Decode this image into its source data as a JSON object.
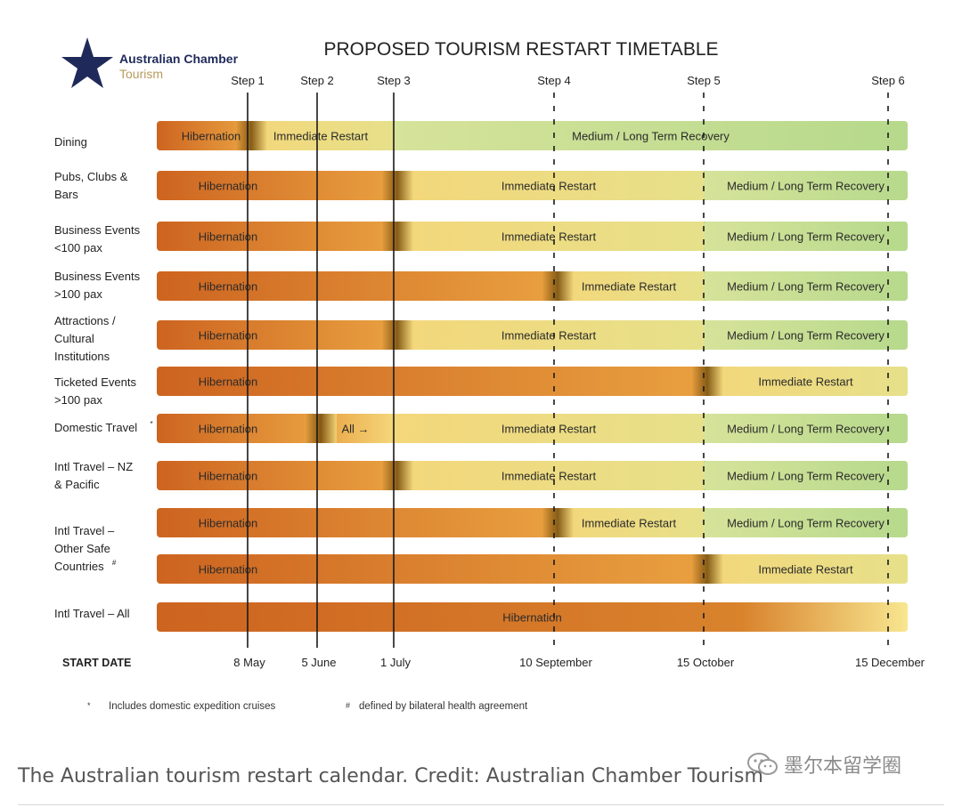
{
  "chart_data": {
    "type": "timeline",
    "title": "PROPOSED TOURISM RESTART TIMETABLE",
    "logo": {
      "line1": "Australian Chamber",
      "line2": "Tourism"
    },
    "steps": [
      {
        "label": "Step 1",
        "date": "8 May"
      },
      {
        "label": "Step 2",
        "date": "5 June"
      },
      {
        "label": "Step 3",
        "date": "1 July"
      },
      {
        "label": "Step 4",
        "date": "10 September"
      },
      {
        "label": "Step 5",
        "date": "15 October"
      },
      {
        "label": "Step 6",
        "date": "15 December"
      }
    ],
    "start_date_label": "START DATE",
    "rows": [
      {
        "category": [
          "Dining"
        ],
        "bars": [
          {
            "phases": [
              {
                "label": "Hibernation",
                "from": "start",
                "to": "8 May"
              },
              {
                "label": "Immediate Restart",
                "from": "8 May",
                "to": "1 July"
              },
              {
                "label": "Medium / Long Term Recovery",
                "from": "1 July",
                "to": "end"
              }
            ]
          }
        ]
      },
      {
        "category": [
          "Pubs, Clubs &",
          "Bars"
        ],
        "bars": [
          {
            "phases": [
              {
                "label": "Hibernation",
                "from": "start",
                "to": "1 July"
              },
              {
                "label": "Immediate Restart",
                "from": "1 July",
                "to": "15 October"
              },
              {
                "label": "Medium / Long Term Recovery",
                "from": "15 October",
                "to": "end"
              }
            ]
          }
        ]
      },
      {
        "category": [
          "Business Events",
          "<100 pax"
        ],
        "bars": [
          {
            "phases": [
              {
                "label": "Hibernation",
                "from": "start",
                "to": "1 July"
              },
              {
                "label": "Immediate Restart",
                "from": "1 July",
                "to": "15 October"
              },
              {
                "label": "Medium / Long Term Recovery",
                "from": "15 October",
                "to": "end"
              }
            ]
          }
        ]
      },
      {
        "category": [
          "Business Events",
          ">100 pax"
        ],
        "bars": [
          {
            "phases": [
              {
                "label": "Hibernation",
                "from": "start",
                "to": "10 September"
              },
              {
                "label": "Immediate Restart",
                "from": "10 September",
                "to": "15 October"
              },
              {
                "label": "Medium / Long Term Recovery",
                "from": "15 October",
                "to": "end"
              }
            ]
          }
        ]
      },
      {
        "category": [
          "Attractions /",
          "Cultural",
          "Institutions"
        ],
        "bars": [
          {
            "phases": [
              {
                "label": "Hibernation",
                "from": "start",
                "to": "1 July"
              },
              {
                "label": "Immediate Restart",
                "from": "1 July",
                "to": "15 October"
              },
              {
                "label": "Medium / Long Term Recovery",
                "from": "15 October",
                "to": "end"
              }
            ]
          }
        ]
      },
      {
        "category": [
          "Ticketed Events",
          ">100 pax"
        ],
        "bars": [
          {
            "phases": [
              {
                "label": "Hibernation",
                "from": "start",
                "to": "15 October"
              },
              {
                "label": "Immediate Restart",
                "from": "15 October",
                "to": "end"
              }
            ]
          }
        ]
      },
      {
        "category": [
          "Domestic Travel"
        ],
        "mark": "*",
        "bars": [
          {
            "phases": [
              {
                "label": "Hibernation",
                "from": "start",
                "to": "5 June"
              },
              {
                "label": "All →",
                "from": "5 June",
                "to": "1 July"
              },
              {
                "label": "Immediate Restart",
                "from": "1 July",
                "to": "15 October"
              },
              {
                "label": "Medium / Long Term Recovery",
                "from": "15 October",
                "to": "end"
              }
            ]
          }
        ]
      },
      {
        "category": [
          "Intl Travel – NZ",
          "& Pacific"
        ],
        "bars": [
          {
            "phases": [
              {
                "label": "Hibernation",
                "from": "start",
                "to": "1 July"
              },
              {
                "label": "Immediate Restart",
                "from": "1 July",
                "to": "15 October"
              },
              {
                "label": "Medium / Long Term Recovery",
                "from": "15 October",
                "to": "end"
              }
            ]
          }
        ]
      },
      {
        "category": [
          "Intl Travel –",
          "Other Safe",
          "Countries"
        ],
        "mark": "#",
        "bars": [
          {
            "phases": [
              {
                "label": "Hibernation",
                "from": "start",
                "to": "10 September"
              },
              {
                "label": "Immediate Restart",
                "from": "10 September",
                "to": "15 October"
              },
              {
                "label": "Medium / Long Term Recovery",
                "from": "15 October",
                "to": "end"
              }
            ]
          },
          {
            "phases": [
              {
                "label": "Hibernation",
                "from": "start",
                "to": "15 October"
              },
              {
                "label": "Immediate Restart",
                "from": "15 October",
                "to": "end"
              }
            ]
          }
        ]
      },
      {
        "category": [
          "Intl Travel – All"
        ],
        "bars": [
          {
            "phases": [
              {
                "label": "Hibernation",
                "from": "start",
                "to": "end"
              }
            ]
          }
        ]
      }
    ],
    "footnotes": [
      {
        "symbol": "*",
        "text": "Includes domestic expedition cruises"
      },
      {
        "symbol": "#",
        "text": "defined by bilateral health agreement"
      }
    ],
    "colors": {
      "hibernation": "#cd6420",
      "hibernation_light": "#e9a040",
      "restart": "#f4d77a",
      "recovery": "#b6d98c",
      "transition": "#7a4f0c",
      "logo_star": "#1f2a5a",
      "logo_accent": "#b79b5e"
    }
  },
  "caption": "The Australian tourism restart calendar. Credit: Australian Chamber Tourism",
  "watermark": "墨尔本留学圈"
}
